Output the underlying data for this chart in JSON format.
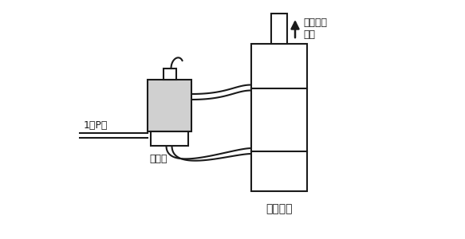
{
  "background_color": "#ffffff",
  "line_color": "#1a1a1a",
  "fill_light_gray": "#d0d0d0",
  "fig_width": 5.83,
  "fig_height": 3.0,
  "dpi": 100,
  "label_denjihen": "電磁弁",
  "label_cylinder": "シリンダ",
  "label_speed_line1": "シリンダ",
  "label_speed_line2": "速度",
  "label_port": "1（P）",
  "font_size_labels": 9,
  "font_size_speed": 9,
  "font_size_cylinder": 10
}
